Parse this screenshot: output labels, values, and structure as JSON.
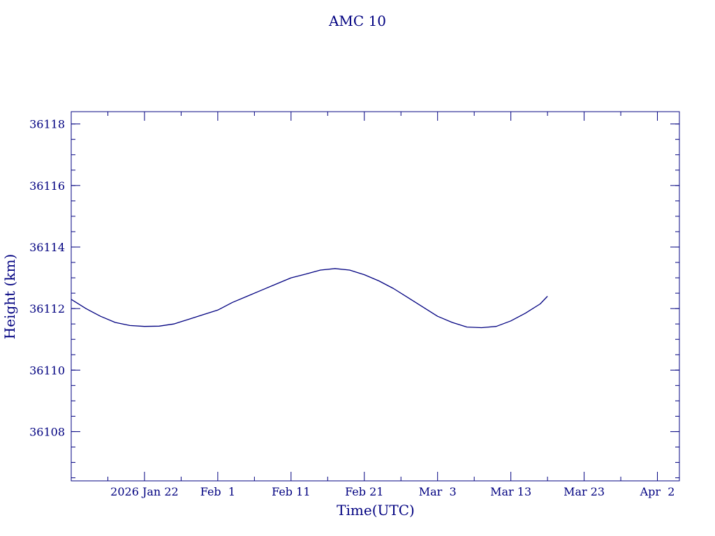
{
  "chart_data": {
    "type": "line",
    "title": "AMC 10",
    "xlabel": "Time(UTC)",
    "ylabel": "Height (km)",
    "ylim": [
      36106.4,
      36118.4
    ],
    "xlim": [
      "2026-01-12",
      "2026-04-05"
    ],
    "x_tick_labels": [
      {
        "date": "2026-01-22",
        "label": "2026 Jan 22"
      },
      {
        "date": "2026-02-01",
        "label": "Feb  1"
      },
      {
        "date": "2026-02-11",
        "label": "Feb 11"
      },
      {
        "date": "2026-02-21",
        "label": "Feb 21"
      },
      {
        "date": "2026-03-03",
        "label": "Mar  3"
      },
      {
        "date": "2026-03-13",
        "label": "Mar 13"
      },
      {
        "date": "2026-03-23",
        "label": "Mar 23"
      },
      {
        "date": "2026-04-02",
        "label": "Apr  2"
      }
    ],
    "x_minor_ticks": [
      "2026-01-17",
      "2026-01-27",
      "2026-02-06",
      "2026-02-16",
      "2026-02-26",
      "2026-03-08",
      "2026-03-18",
      "2026-03-28"
    ],
    "y_tick_labels": [
      "36108",
      "36110",
      "36112",
      "36114",
      "36116",
      "36118"
    ],
    "y_major_step": 2,
    "y_minor_step": 0.5,
    "grid": false,
    "legend": "none",
    "line_color": "#000080",
    "series": [
      {
        "x": [
          "2026-01-12",
          "2026-01-14",
          "2026-01-16",
          "2026-01-18",
          "2026-01-20",
          "2026-01-22",
          "2026-01-24",
          "2026-01-26",
          "2026-01-28",
          "2026-01-30",
          "2026-02-01",
          "2026-02-03",
          "2026-02-05",
          "2026-02-07",
          "2026-02-09",
          "2026-02-11",
          "2026-02-13",
          "2026-02-15",
          "2026-02-17",
          "2026-02-19",
          "2026-02-21",
          "2026-02-23",
          "2026-02-25",
          "2026-02-27",
          "2026-03-01",
          "2026-03-03",
          "2026-03-05",
          "2026-03-07",
          "2026-03-09",
          "2026-03-11",
          "2026-03-13",
          "2026-03-15",
          "2026-03-17",
          "2026-03-18"
        ],
        "y": [
          36112.3,
          36112.0,
          36111.75,
          36111.55,
          36111.45,
          36111.42,
          36111.43,
          36111.5,
          36111.65,
          36111.8,
          36111.95,
          36112.2,
          36112.4,
          36112.6,
          36112.8,
          36113.0,
          36113.12,
          36113.25,
          36113.3,
          36113.25,
          36113.1,
          36112.9,
          36112.65,
          36112.35,
          36112.05,
          36111.75,
          36111.55,
          36111.4,
          36111.38,
          36111.42,
          36111.6,
          36111.85,
          36112.15,
          36112.4
        ]
      }
    ]
  }
}
